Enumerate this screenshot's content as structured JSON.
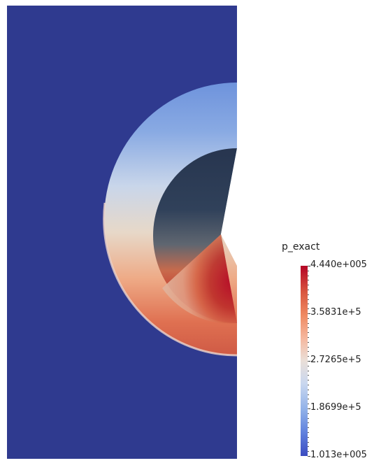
{
  "legend": {
    "field_name": "p_exact",
    "labels": [
      "4.440e+005",
      "3.5831e+5",
      "2.7265e+5",
      "1.8699e+5",
      "1.013e+005"
    ]
  },
  "colors": {
    "background": "#2f3a8f",
    "outer_ring_top": "#6b8fd8",
    "outer_ring_mid": "#e8d6c6",
    "outer_ring_bottom": "#d9573f",
    "inner_dark": "#2c3a58",
    "inner_hot": "#b40426"
  }
}
